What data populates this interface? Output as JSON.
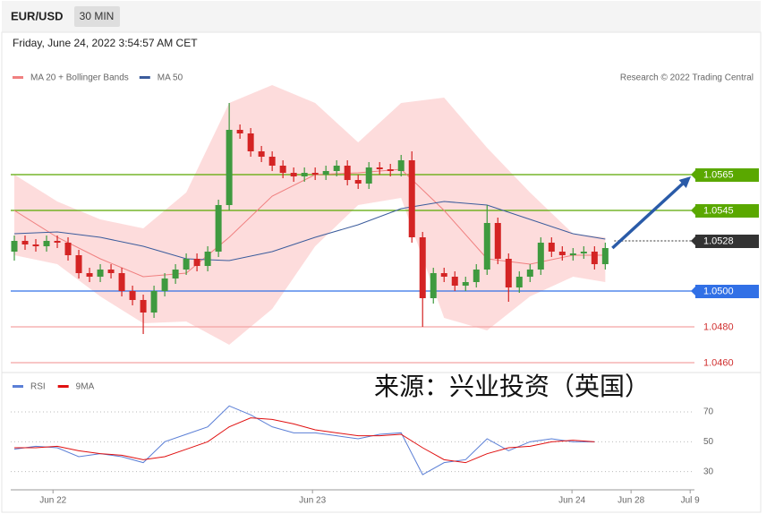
{
  "header": {
    "symbol": "EUR/USD",
    "interval": "30 MIN",
    "timestamp": "Friday, June 24, 2022 3:54:57 AM CET"
  },
  "watermark": "来源：兴业投资（英国）",
  "chart_data": [
    {
      "type": "candlestick",
      "credit": "Research © 2022 Trading Central",
      "xlim": [
        -0.5,
        63.3
      ],
      "ylim": [
        1.0455,
        1.06125
      ],
      "up_color": "#3f9a3f",
      "down_color": "#d42424",
      "open": [
        1.0522,
        1.0528,
        1.0526,
        1.0525,
        1.0528,
        1.0527,
        1.052,
        1.051,
        1.0508,
        1.0512,
        1.051,
        1.05,
        1.0495,
        1.0488,
        1.05,
        1.0507,
        1.0512,
        1.0518,
        1.0514,
        1.0522,
        1.0548,
        1.059,
        1.0588,
        1.0578,
        1.0575,
        1.057,
        1.0566,
        1.0564,
        1.0566,
        1.0565,
        1.0567,
        1.057,
        1.0562,
        1.056,
        1.0569,
        1.0568,
        1.0567,
        1.0573,
        1.053,
        1.0496,
        1.051,
        1.0508,
        1.0503,
        1.0505,
        1.0512,
        1.0538,
        1.0518,
        1.0502,
        1.0508,
        1.0512,
        1.0527,
        1.0522,
        1.052,
        1.0521,
        1.0522,
        1.0515
      ],
      "high": [
        1.0531,
        1.0531,
        1.0529,
        1.0531,
        1.0531,
        1.053,
        1.0523,
        1.0513,
        1.0515,
        1.0515,
        1.0513,
        1.0503,
        1.0498,
        1.0503,
        1.051,
        1.0515,
        1.0521,
        1.0521,
        1.0525,
        1.0551,
        1.0605,
        1.0593,
        1.0591,
        1.0581,
        1.0578,
        1.0573,
        1.0569,
        1.0569,
        1.0569,
        1.057,
        1.0573,
        1.0573,
        1.0565,
        1.0572,
        1.0572,
        1.0571,
        1.0576,
        1.0578,
        1.0533,
        1.0513,
        1.0513,
        1.0511,
        1.0508,
        1.0515,
        1.0548,
        1.0541,
        1.0521,
        1.0511,
        1.0515,
        1.053,
        1.053,
        1.0525,
        1.0524,
        1.0525,
        1.0525,
        1.0527
      ],
      "low": [
        1.0517,
        1.0523,
        1.0522,
        1.0522,
        1.0524,
        1.0517,
        1.0507,
        1.0505,
        1.0505,
        1.0507,
        1.0497,
        1.0492,
        1.0476,
        1.0485,
        1.0497,
        1.0504,
        1.0509,
        1.0511,
        1.0511,
        1.0519,
        1.0545,
        1.0585,
        1.0575,
        1.0572,
        1.0567,
        1.0563,
        1.0561,
        1.0561,
        1.0562,
        1.0562,
        1.0564,
        1.0559,
        1.0557,
        1.0557,
        1.0565,
        1.0564,
        1.0564,
        1.0527,
        1.048,
        1.0493,
        1.0505,
        1.05,
        1.05,
        1.0502,
        1.0509,
        1.0515,
        1.0494,
        1.0499,
        1.0505,
        1.0509,
        1.0519,
        1.0517,
        1.0517,
        1.0518,
        1.0512,
        1.0512
      ],
      "close": [
        1.0528,
        1.0526,
        1.0525,
        1.0528,
        1.0527,
        1.052,
        1.051,
        1.0508,
        1.0512,
        1.051,
        1.05,
        1.0495,
        1.0488,
        1.05,
        1.0507,
        1.0512,
        1.0518,
        1.0514,
        1.0522,
        1.0548,
        1.059,
        1.0588,
        1.0578,
        1.0575,
        1.057,
        1.0566,
        1.0564,
        1.0566,
        1.0565,
        1.0567,
        1.057,
        1.0562,
        1.056,
        1.0569,
        1.0568,
        1.0567,
        1.0573,
        1.053,
        1.0496,
        1.051,
        1.0508,
        1.0503,
        1.0505,
        1.0512,
        1.0538,
        1.0518,
        1.0502,
        1.0508,
        1.0512,
        1.0527,
        1.0522,
        1.052,
        1.0521,
        1.0522,
        1.0515,
        1.0524
      ],
      "ma_x": [
        0,
        4,
        8,
        12,
        16,
        20,
        24,
        28,
        32,
        36,
        40,
        44,
        48,
        52,
        55
      ],
      "series": [
        {
          "name": "MA 20 + Bollinger Bands",
          "color": "#f08080",
          "band_color": "#fcd3d3",
          "values": [
            1.0545,
            1.053,
            1.0518,
            1.0508,
            1.051,
            1.053,
            1.0553,
            1.0565,
            1.0566,
            1.0568,
            1.0545,
            1.0518,
            1.0515,
            1.052,
            1.052
          ],
          "upper": [
            1.0565,
            1.055,
            1.054,
            1.0535,
            1.0555,
            1.0605,
            1.0615,
            1.0605,
            1.0583,
            1.0605,
            1.0608,
            1.058,
            1.0555,
            1.0532,
            1.053
          ],
          "lower": [
            1.052,
            1.0515,
            1.0497,
            1.0482,
            1.0483,
            1.047,
            1.049,
            1.0525,
            1.0548,
            1.0552,
            1.0485,
            1.0478,
            1.0497,
            1.0508,
            1.0505
          ]
        },
        {
          "name": "MA 50",
          "color": "#3b5c9c",
          "values": [
            1.0532,
            1.0533,
            1.053,
            1.0525,
            1.0518,
            1.0517,
            1.0522,
            1.053,
            1.0537,
            1.0546,
            1.055,
            1.0548,
            1.054,
            1.0532,
            1.0529
          ]
        }
      ],
      "levels": [
        {
          "value": 1.0565,
          "label": "1.0565",
          "color": "#5aa800",
          "boxed": true,
          "line": "solid"
        },
        {
          "value": 1.0545,
          "label": "1.0545",
          "color": "#5aa800",
          "boxed": true,
          "line": "solid"
        },
        {
          "value": 1.0528,
          "label": "1.0528",
          "color": "#333333",
          "boxed": true,
          "line": "dotted"
        },
        {
          "value": 1.05,
          "label": "1.0500",
          "color": "#3170e6",
          "boxed": true,
          "line": "solid"
        },
        {
          "value": 1.048,
          "label": "1.0480",
          "color": "#f3a3a3",
          "boxed": false,
          "line": "solid"
        },
        {
          "value": 1.046,
          "label": "1.0460",
          "color": "#f3a3a3",
          "boxed": false,
          "line": "solid"
        }
      ]
    },
    {
      "type": "line",
      "xlim": [
        -0.5,
        63.3
      ],
      "ylim": [
        19,
        82
      ],
      "yticks": [
        70,
        50,
        30
      ],
      "x": [
        0,
        2,
        4,
        6,
        8,
        10,
        12,
        14,
        16,
        18,
        20,
        22,
        24,
        26,
        28,
        30,
        32,
        34,
        36,
        38,
        40,
        42,
        44,
        46,
        48,
        50,
        52,
        54
      ],
      "xticks": [
        {
          "value": 3.6,
          "label": "Jun 22"
        },
        {
          "value": 27.75,
          "label": "Jun 23"
        },
        {
          "value": 51.9,
          "label": "Jun 24"
        },
        {
          "value": 57.4,
          "label": "Jun 28"
        },
        {
          "value": 62.9,
          "label": "Jul 9"
        }
      ],
      "series": [
        {
          "name": "RSI",
          "color": "#5b7fd6",
          "values": [
            45,
            47,
            46,
            40,
            42,
            40,
            36,
            50,
            55,
            60,
            74,
            68,
            60,
            56,
            56,
            54,
            52,
            55,
            56,
            28,
            36,
            38,
            52,
            44,
            50,
            52,
            50,
            50
          ]
        },
        {
          "name": "9MA",
          "color": "#e01010",
          "values": [
            46,
            46,
            47,
            44,
            42,
            41,
            38,
            40,
            45,
            50,
            60,
            66,
            65,
            62,
            58,
            56,
            54,
            54,
            55,
            46,
            38,
            36,
            42,
            46,
            47,
            50,
            51,
            50
          ]
        }
      ]
    }
  ]
}
